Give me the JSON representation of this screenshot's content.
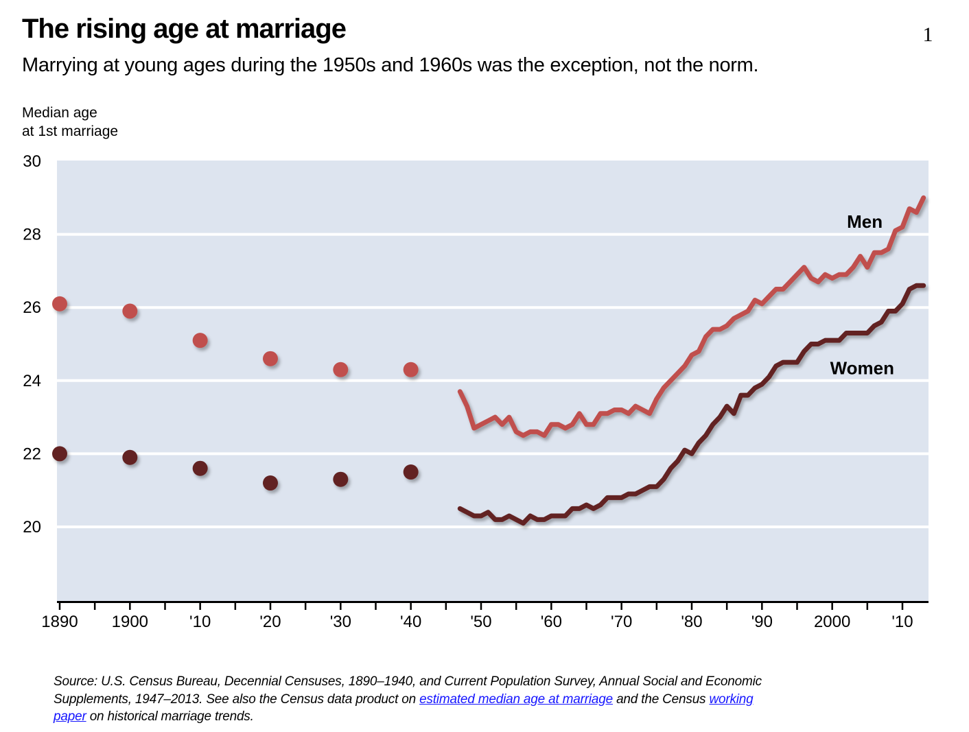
{
  "page": {
    "title": "The rising age at marriage",
    "page_number": "1",
    "subtitle": "Marrying at young ages during the 1950s and 1960s was the exception, not the norm."
  },
  "chart": {
    "y_axis_label_line1": "Median age",
    "y_axis_label_line2": "at 1st marriage"
  },
  "chart_data": {
    "type": "line",
    "title": "The rising age at marriage",
    "ylabel": "Median age at 1st marriage",
    "ylim": [
      18,
      30
    ],
    "xlim": [
      1889.6,
      2013.7
    ],
    "grid": "horizontal-white",
    "colors": {
      "men": "#c0504d",
      "women": "#622423",
      "plot_bg": "#dde4ef",
      "gridline": "#ffffff",
      "axis": "#000000",
      "link": "#1515ff"
    },
    "y_axis": {
      "ticks": [
        {
          "value": 20,
          "label": "20"
        },
        {
          "value": 22,
          "label": "22"
        },
        {
          "value": 24,
          "label": "24"
        },
        {
          "value": 26,
          "label": "26"
        },
        {
          "value": 28,
          "label": "28"
        },
        {
          "value": 30,
          "label": "30"
        }
      ]
    },
    "x_axis": {
      "minor_tick_start": 1890,
      "minor_tick_end": 2010,
      "minor_tick_step": 5,
      "ticks": [
        {
          "year": 1890,
          "label": "1890"
        },
        {
          "year": 1900,
          "label": "1900"
        },
        {
          "year": 1910,
          "label": "'10"
        },
        {
          "year": 1920,
          "label": "'20"
        },
        {
          "year": 1930,
          "label": "'30"
        },
        {
          "year": 1940,
          "label": "'40"
        },
        {
          "year": 1950,
          "label": "'50"
        },
        {
          "year": 1960,
          "label": "'60"
        },
        {
          "year": 1970,
          "label": "'70"
        },
        {
          "year": 1980,
          "label": "'80"
        },
        {
          "year": 1990,
          "label": "'90"
        },
        {
          "year": 2000,
          "label": "2000"
        },
        {
          "year": 2010,
          "label": "'10"
        }
      ]
    },
    "scatter": {
      "years": [
        1890,
        1900,
        1910,
        1920,
        1930,
        1940
      ],
      "men": [
        26.1,
        25.9,
        25.1,
        24.6,
        24.3,
        24.3
      ],
      "women": [
        22.0,
        21.9,
        21.6,
        21.2,
        21.3,
        21.5
      ]
    },
    "lines": {
      "start_year": 1947,
      "end_year": 2013,
      "men": [
        23.7,
        23.3,
        22.7,
        22.8,
        22.9,
        23.0,
        22.8,
        23.0,
        22.6,
        22.5,
        22.6,
        22.6,
        22.5,
        22.8,
        22.8,
        22.7,
        22.8,
        23.1,
        22.8,
        22.8,
        23.1,
        23.1,
        23.2,
        23.2,
        23.1,
        23.3,
        23.2,
        23.1,
        23.5,
        23.8,
        24.0,
        24.2,
        24.4,
        24.7,
        24.8,
        25.2,
        25.4,
        25.4,
        25.5,
        25.7,
        25.8,
        25.9,
        26.2,
        26.1,
        26.3,
        26.5,
        26.5,
        26.7,
        26.9,
        27.1,
        26.8,
        26.7,
        26.9,
        26.8,
        26.9,
        26.9,
        27.1,
        27.4,
        27.1,
        27.5,
        27.5,
        27.6,
        28.1,
        28.2,
        28.7,
        28.6,
        29.0
      ],
      "women": [
        20.5,
        20.4,
        20.3,
        20.3,
        20.4,
        20.2,
        20.2,
        20.3,
        20.2,
        20.1,
        20.3,
        20.2,
        20.2,
        20.3,
        20.3,
        20.3,
        20.5,
        20.5,
        20.6,
        20.5,
        20.6,
        20.8,
        20.8,
        20.8,
        20.9,
        20.9,
        21.0,
        21.1,
        21.1,
        21.3,
        21.6,
        21.8,
        22.1,
        22.0,
        22.3,
        22.5,
        22.8,
        23.0,
        23.3,
        23.1,
        23.6,
        23.6,
        23.8,
        23.9,
        24.1,
        24.4,
        24.5,
        24.5,
        24.5,
        24.8,
        25.0,
        25.0,
        25.1,
        25.1,
        25.1,
        25.3,
        25.3,
        25.3,
        25.3,
        25.5,
        25.6,
        25.9,
        25.9,
        26.1,
        26.5,
        26.6,
        26.6
      ]
    },
    "annotations": [
      {
        "series": "men",
        "label": "Men",
        "year": 2002.1,
        "value": 28.18
      },
      {
        "series": "women",
        "label": "Women",
        "year": 1999.7,
        "value": 24.17
      }
    ]
  },
  "source": {
    "segments": [
      {
        "text": "Source: U.S. Census Bureau, Decennial Censuses, 1890–1940, and Current Population Survey, Annual Social and Economic Supplements, 1947–2013. See also the Census data product on ",
        "link": false
      },
      {
        "text": "estimated median age at marriage",
        "link": true
      },
      {
        "text": " and the Census ",
        "link": false
      },
      {
        "text": "working paper",
        "link": true
      },
      {
        "text": " on historical marriage trends.",
        "link": false
      }
    ]
  }
}
